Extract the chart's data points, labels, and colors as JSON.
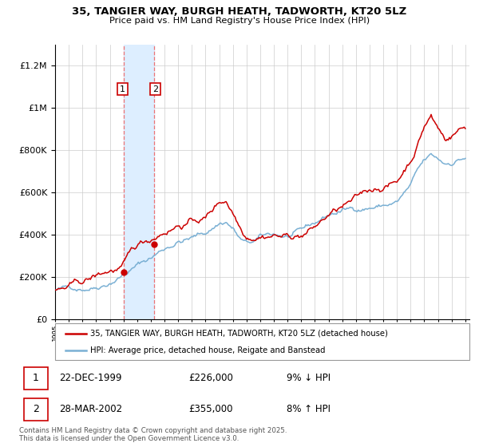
{
  "title": "35, TANGIER WAY, BURGH HEATH, TADWORTH, KT20 5LZ",
  "subtitle": "Price paid vs. HM Land Registry's House Price Index (HPI)",
  "legend_line1": "35, TANGIER WAY, BURGH HEATH, TADWORTH, KT20 5LZ (detached house)",
  "legend_line2": "HPI: Average price, detached house, Reigate and Banstead",
  "footer": "Contains HM Land Registry data © Crown copyright and database right 2025.\nThis data is licensed under the Open Government Licence v3.0.",
  "transaction1_label": "1",
  "transaction1_date": "22-DEC-1999",
  "transaction1_price": "£226,000",
  "transaction1_hpi": "9% ↓ HPI",
  "transaction2_label": "2",
  "transaction2_date": "28-MAR-2002",
  "transaction2_price": "£355,000",
  "transaction2_hpi": "8% ↑ HPI",
  "color_red": "#cc0000",
  "color_blue": "#7ab0d4",
  "color_highlight": "#ddeeff",
  "ylim_min": 0,
  "ylim_max": 1300000,
  "t1_year": 2000.0,
  "t2_year": 2002.25,
  "t1_price": 226000,
  "t2_price": 355000,
  "hpi_breakpoints_x": [
    1995.0,
    1996.0,
    1997.0,
    1998.0,
    1999.0,
    2000.0,
    2001.0,
    2002.0,
    2003.0,
    2004.0,
    2005.0,
    2006.0,
    2007.0,
    2007.5,
    2008.0,
    2008.5,
    2009.0,
    2009.5,
    2010.0,
    2011.0,
    2012.0,
    2013.0,
    2014.0,
    2015.0,
    2016.0,
    2017.0,
    2018.0,
    2019.0,
    2020.0,
    2021.0,
    2021.5,
    2022.0,
    2022.5,
    2023.0,
    2023.5,
    2024.0,
    2024.5,
    2025.0
  ],
  "hpi_breakpoints_y": [
    140000,
    145000,
    155000,
    175000,
    210000,
    255000,
    295000,
    330000,
    375000,
    415000,
    430000,
    450000,
    500000,
    510000,
    480000,
    430000,
    400000,
    405000,
    420000,
    430000,
    420000,
    430000,
    460000,
    500000,
    520000,
    530000,
    545000,
    555000,
    570000,
    640000,
    700000,
    740000,
    760000,
    740000,
    720000,
    730000,
    750000,
    760000
  ],
  "prop_breakpoints_x": [
    1995.0,
    1996.0,
    1997.0,
    1998.0,
    1999.0,
    1999.97,
    2000.5,
    2001.0,
    2002.0,
    2002.25,
    2003.0,
    2004.0,
    2005.0,
    2006.0,
    2007.0,
    2007.5,
    2008.0,
    2008.5,
    2009.0,
    2009.5,
    2010.0,
    2011.0,
    2012.0,
    2013.0,
    2014.0,
    2015.0,
    2016.0,
    2017.0,
    2018.0,
    2019.0,
    2020.0,
    2021.0,
    2021.5,
    2022.0,
    2022.5,
    2022.7,
    2023.0,
    2023.5,
    2024.0,
    2024.5,
    2025.0
  ],
  "prop_breakpoints_y": [
    140000,
    148000,
    160000,
    185000,
    210000,
    226000,
    270000,
    305000,
    340000,
    355000,
    395000,
    435000,
    455000,
    470000,
    545000,
    560000,
    510000,
    450000,
    415000,
    425000,
    440000,
    455000,
    445000,
    455000,
    490000,
    545000,
    575000,
    595000,
    630000,
    660000,
    680000,
    790000,
    870000,
    960000,
    1010000,
    980000,
    950000,
    900000,
    920000,
    950000,
    960000
  ],
  "noise_seed": 42,
  "noise_scale_hpi": 4000,
  "noise_scale_prop": 5000
}
